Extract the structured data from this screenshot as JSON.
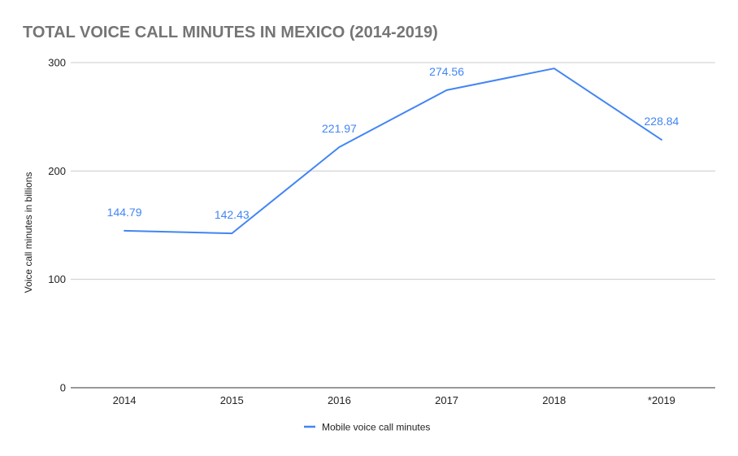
{
  "chart_data": {
    "type": "line",
    "title": "TOTAL VOICE CALL MINUTES IN MEXICO (2014-2019)",
    "xlabel": "",
    "ylabel": "Voice call minutes in billions",
    "categories": [
      "2014",
      "2015",
      "2016",
      "2017",
      "2018",
      "*2019"
    ],
    "series": [
      {
        "name": "Mobile voice call minutes",
        "values": [
          144.79,
          142.43,
          221.97,
          274.56,
          294.6,
          228.84
        ],
        "labels": [
          "144.79",
          "142.43",
          "221.97",
          "274.56",
          "",
          "228.84"
        ],
        "color": "#4285f4"
      }
    ],
    "ylim": [
      0,
      300
    ],
    "yticks": [
      0,
      100,
      200,
      300
    ],
    "grid": true,
    "legend_position": "bottom"
  }
}
